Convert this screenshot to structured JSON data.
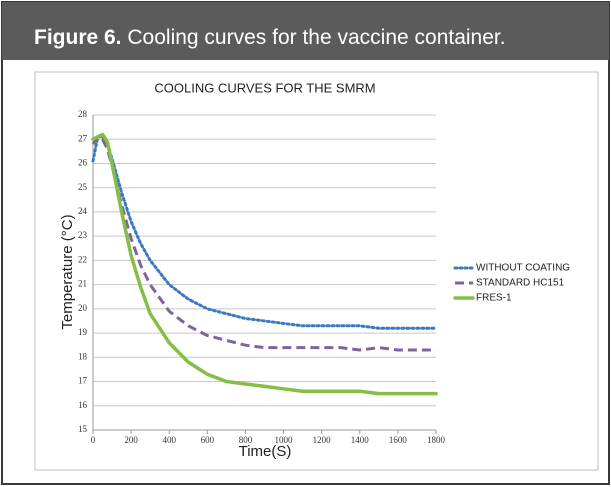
{
  "figure": {
    "label": "Figure 6.",
    "caption": "Cooling curves for the vaccine container."
  },
  "chart_data": {
    "type": "line",
    "title": "COOLING CURVES FOR THE SMRM",
    "x_label": "Time(S)",
    "y_label": "Temperature (°C)",
    "x": [
      0,
      25,
      50,
      75,
      100,
      150,
      200,
      250,
      300,
      400,
      500,
      600,
      700,
      800,
      900,
      1000,
      1100,
      1200,
      1300,
      1400,
      1500,
      1600,
      1700,
      1800
    ],
    "series": [
      {
        "name": "WITHOUT COATING",
        "color": "#3b78bd",
        "style": "dotted",
        "values": [
          26.1,
          27.1,
          27.1,
          26.8,
          26.2,
          24.8,
          23.6,
          22.7,
          22.0,
          21.0,
          20.4,
          20.0,
          19.8,
          19.6,
          19.5,
          19.4,
          19.3,
          19.3,
          19.3,
          19.3,
          19.2,
          19.2,
          19.2,
          19.2
        ]
      },
      {
        "name": "STANDARD HC151",
        "color": "#7f63a1",
        "style": "dashed",
        "values": [
          26.8,
          27.1,
          27.0,
          26.6,
          25.9,
          24.3,
          22.9,
          21.8,
          21.0,
          19.9,
          19.3,
          18.9,
          18.7,
          18.5,
          18.4,
          18.4,
          18.4,
          18.4,
          18.4,
          18.3,
          18.4,
          18.3,
          18.3,
          18.3
        ]
      },
      {
        "name": "FRES-1",
        "color": "#86bd47",
        "style": "solid",
        "values": [
          27.0,
          27.1,
          27.2,
          26.9,
          26.0,
          24.0,
          22.2,
          20.9,
          19.8,
          18.6,
          17.8,
          17.3,
          17.0,
          16.9,
          16.8,
          16.7,
          16.6,
          16.6,
          16.6,
          16.6,
          16.5,
          16.5,
          16.5,
          16.5
        ]
      }
    ],
    "xlim": [
      0,
      1800
    ],
    "xticks": [
      0,
      200,
      400,
      600,
      800,
      1000,
      1200,
      1400,
      1600,
      1800
    ],
    "ylim": [
      15,
      28
    ],
    "yticks": [
      15,
      16,
      17,
      18,
      19,
      20,
      21,
      22,
      23,
      24,
      25,
      26,
      27,
      28
    ],
    "grid": true,
    "legend": "right"
  }
}
